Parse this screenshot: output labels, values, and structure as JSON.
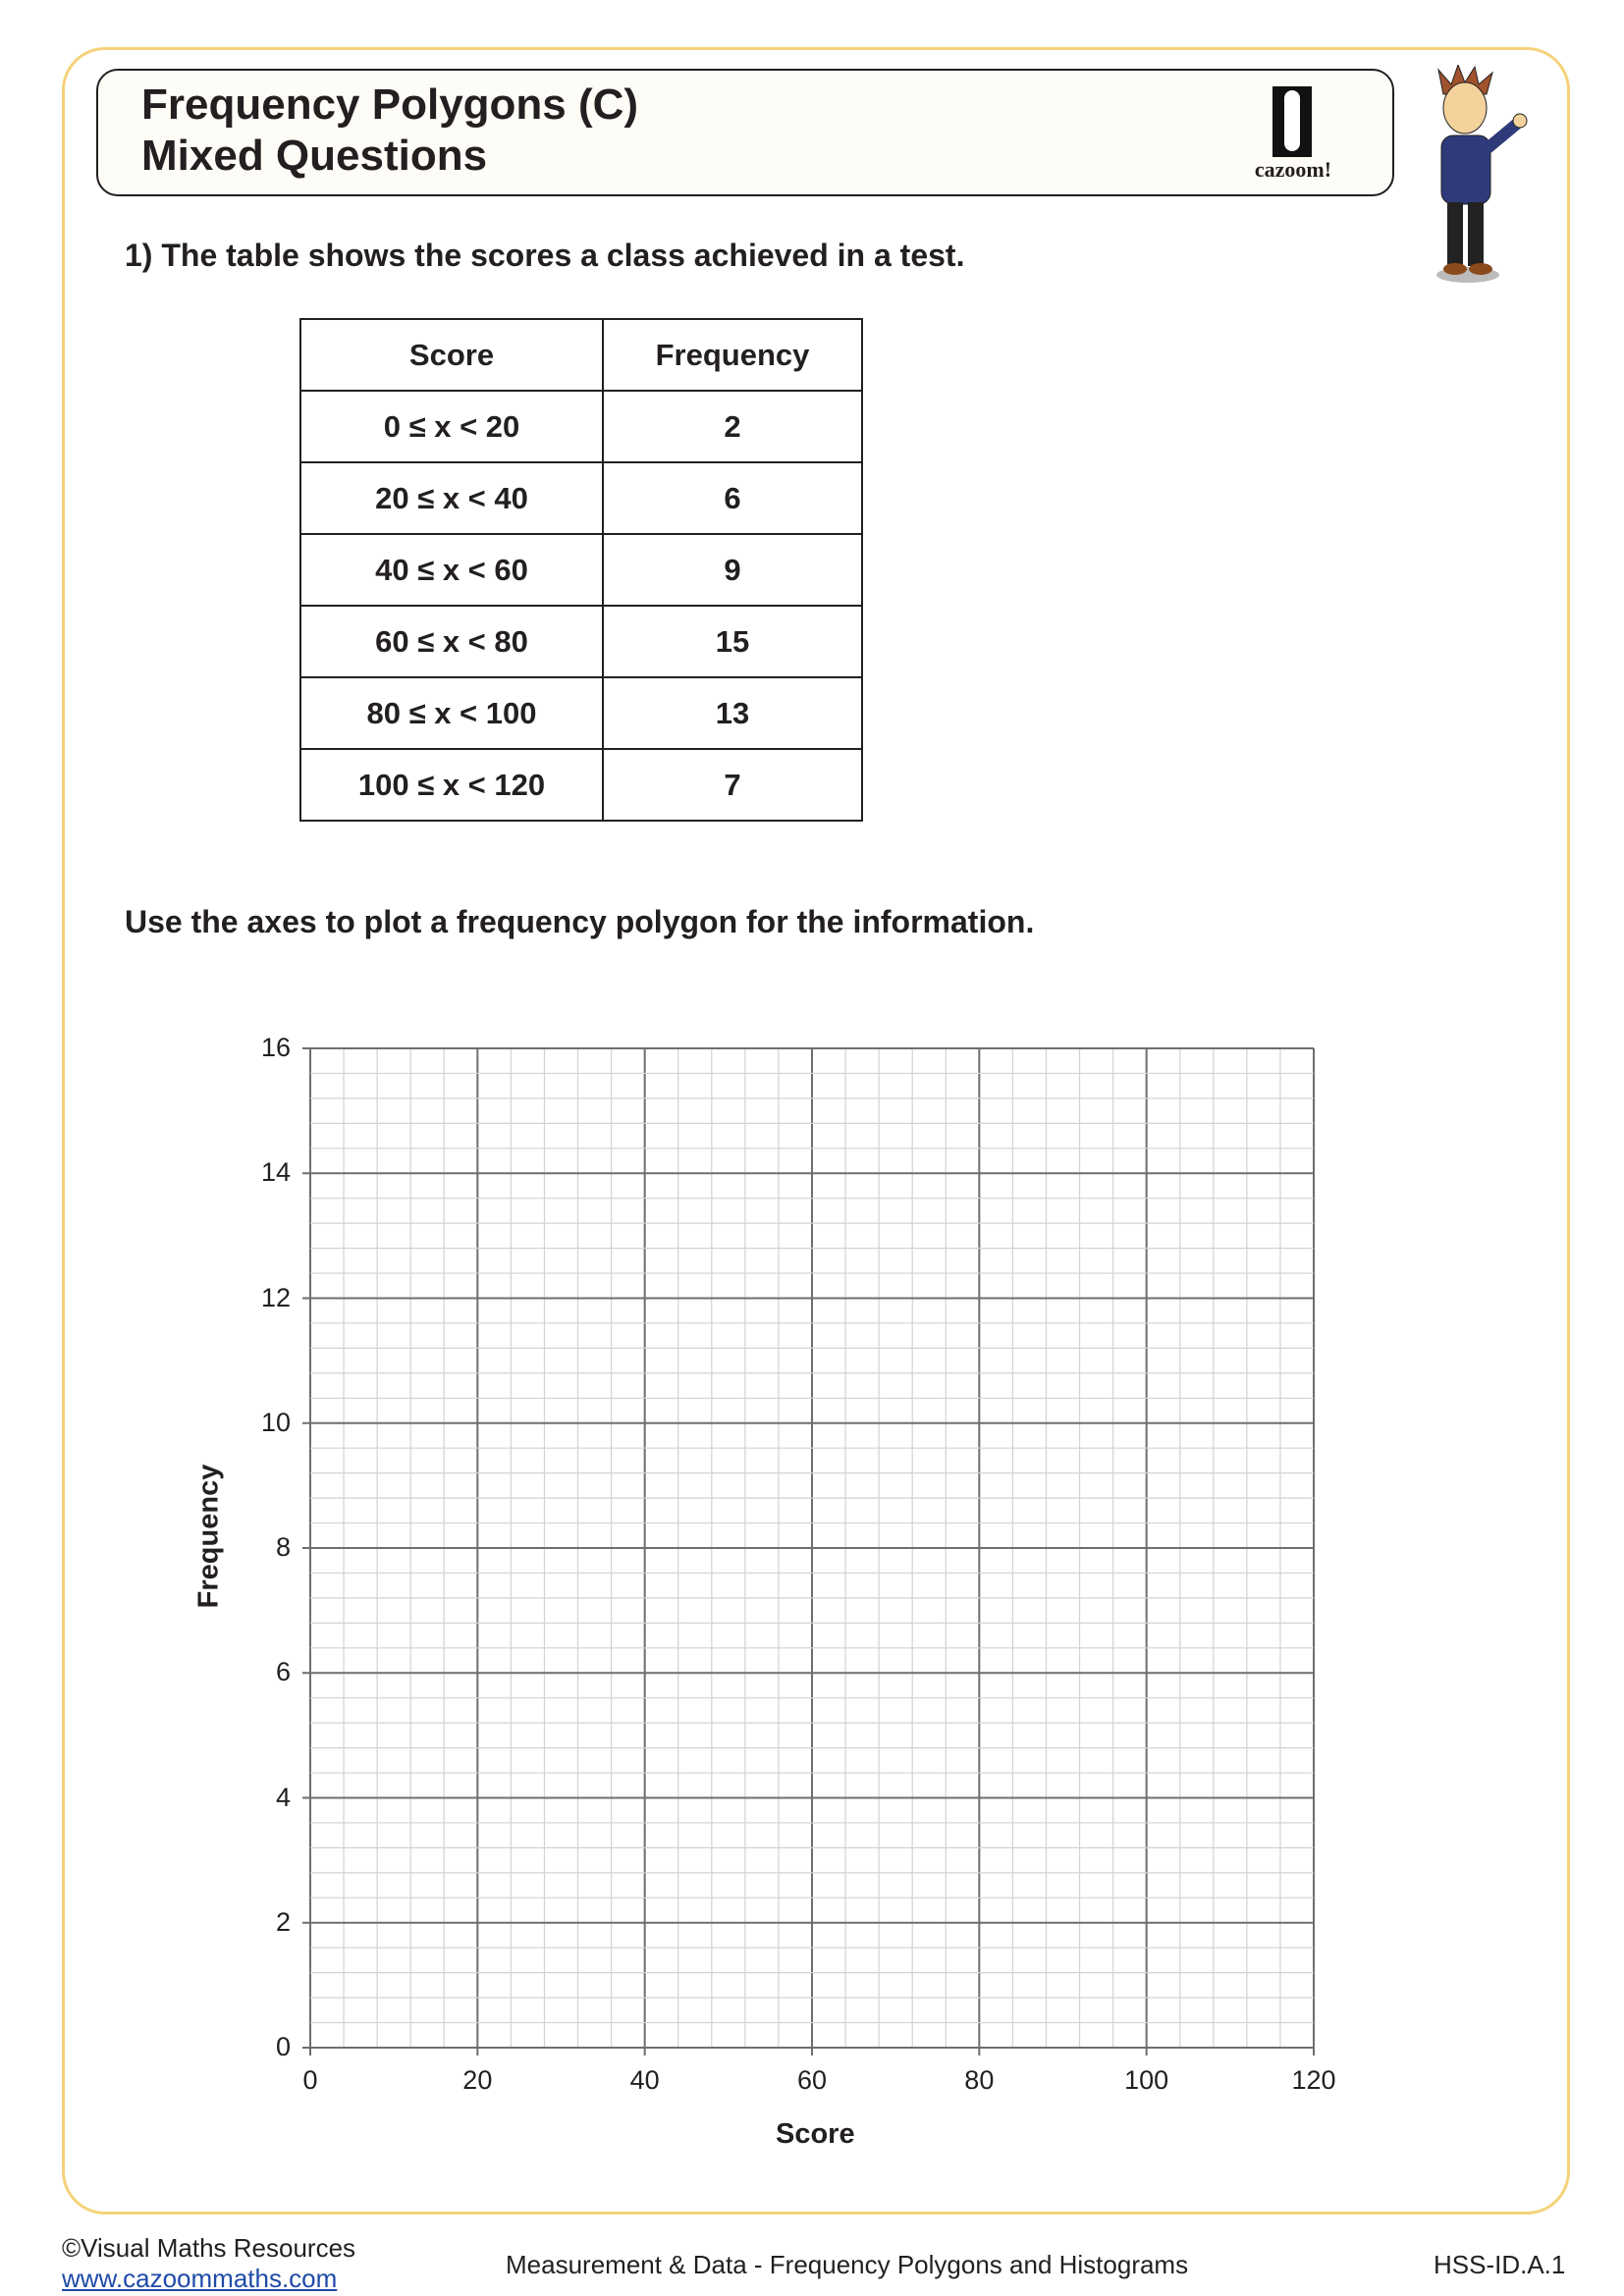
{
  "header": {
    "title_line1": "Frequency Polygons (C)",
    "title_line2": "Mixed Questions",
    "logo_text": "cazoom!"
  },
  "question": {
    "text": "1) The table shows the scores a class achieved in a test.",
    "instruction": "Use the axes to plot a frequency polygon for the information."
  },
  "table": {
    "headers": [
      "Score",
      "Frequency"
    ],
    "rows": [
      [
        "0 ≤ x < 20",
        "2"
      ],
      [
        "20 ≤ x < 40",
        "6"
      ],
      [
        "40 ≤ x < 60",
        "9"
      ],
      [
        "60 ≤ x < 80",
        "15"
      ],
      [
        "80 ≤ x < 100",
        "13"
      ],
      [
        "100 ≤ x < 120",
        "7"
      ]
    ]
  },
  "chart_data": {
    "type": "line",
    "xlabel": "Score",
    "ylabel": "Frequency",
    "xlim": [
      0,
      120
    ],
    "ylim": [
      0,
      16
    ],
    "x_ticks": [
      "0",
      "20",
      "40",
      "60",
      "80",
      "100",
      "120"
    ],
    "y_ticks": [
      "0",
      "2",
      "4",
      "6",
      "8",
      "10",
      "12",
      "14",
      "16"
    ],
    "grid": true,
    "series": []
  },
  "footer": {
    "copyright": "©Visual Maths Resources",
    "website": "www.cazoommaths.com",
    "topic": "Measurement & Data - Frequency Polygons and Histograms",
    "code": "HSS-ID.A.1"
  },
  "colors": {
    "border": "#f5d27a",
    "grid_major": "#6d6e71",
    "grid_minor": "#d1d3d4",
    "link": "#1f4aa8"
  }
}
